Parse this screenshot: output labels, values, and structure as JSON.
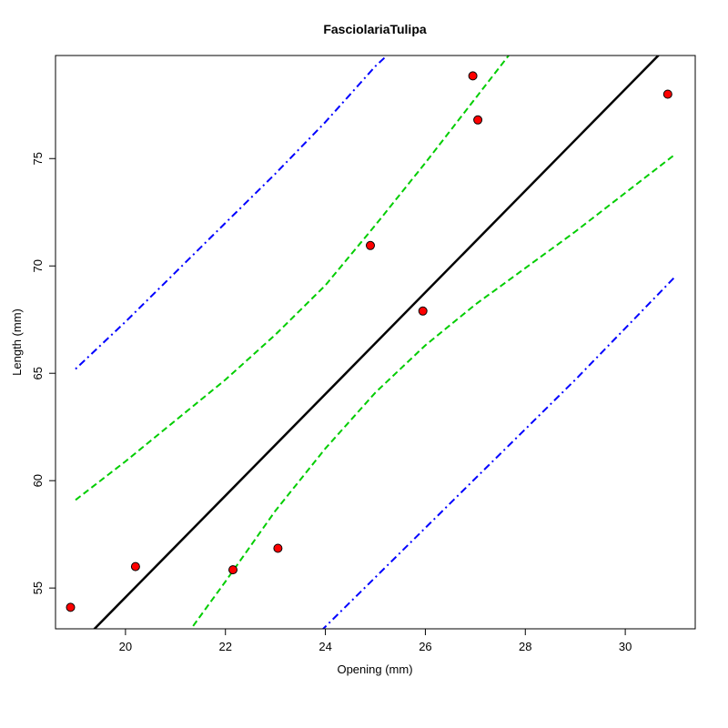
{
  "chart_data": {
    "type": "scatter",
    "title": "FasciolariaTulipa",
    "xlabel": "Opening (mm)",
    "ylabel": "Length (mm)",
    "xlim": [
      18.6,
      31.4
    ],
    "ylim": [
      53.1,
      79.8
    ],
    "x_ticks": [
      20,
      22,
      24,
      26,
      28,
      30
    ],
    "y_ticks": [
      55,
      60,
      65,
      70,
      75
    ],
    "grid": false,
    "points": {
      "x": [
        18.9,
        20.2,
        22.15,
        23.05,
        24.9,
        25.95,
        26.95,
        27.05,
        30.85
      ],
      "y": [
        54.1,
        56.0,
        55.85,
        56.85,
        70.95,
        67.9,
        78.85,
        76.8,
        78.0
      ],
      "color": "#ff0000",
      "edge_color": "#000000"
    },
    "lines": [
      {
        "kind": "fit",
        "style": "solid",
        "color": "#000000",
        "x": [
          19.0,
          31.0
        ],
        "y": [
          52.2,
          80.6
        ]
      },
      {
        "kind": "confidence-upper",
        "style": "dashed",
        "color": "#00cd00",
        "x": [
          19.0,
          20.0,
          21.0,
          22.0,
          23.0,
          24.0,
          25.0,
          26.0,
          27.0,
          28.0
        ],
        "y": [
          59.1,
          60.9,
          62.8,
          64.7,
          66.8,
          69.1,
          71.9,
          74.8,
          77.8,
          80.8
        ]
      },
      {
        "kind": "confidence-lower",
        "style": "dashed",
        "color": "#00cd00",
        "x": [
          21.0,
          22.0,
          23.0,
          24.0,
          25.0,
          26.0,
          27.0,
          28.0,
          29.0,
          30.0,
          31.0
        ],
        "y": [
          52.1,
          55.3,
          58.6,
          61.5,
          64.1,
          66.3,
          68.2,
          69.9,
          71.6,
          73.4,
          75.2
        ]
      },
      {
        "kind": "prediction-upper",
        "style": "dotdash",
        "color": "#0000ff",
        "x": [
          19.0,
          20.0,
          21.0,
          22.0,
          23.0,
          24.0,
          25.0,
          25.6
        ],
        "y": [
          65.2,
          67.4,
          69.7,
          72.0,
          74.3,
          76.7,
          79.3,
          80.6
        ]
      },
      {
        "kind": "prediction-lower",
        "style": "dotdash",
        "color": "#0000ff",
        "x": [
          23.6,
          24.0,
          25.0,
          26.0,
          27.0,
          28.0,
          29.0,
          30.0,
          31.0
        ],
        "y": [
          52.3,
          53.2,
          55.5,
          57.8,
          60.1,
          62.4,
          64.7,
          67.1,
          69.5
        ]
      }
    ]
  }
}
